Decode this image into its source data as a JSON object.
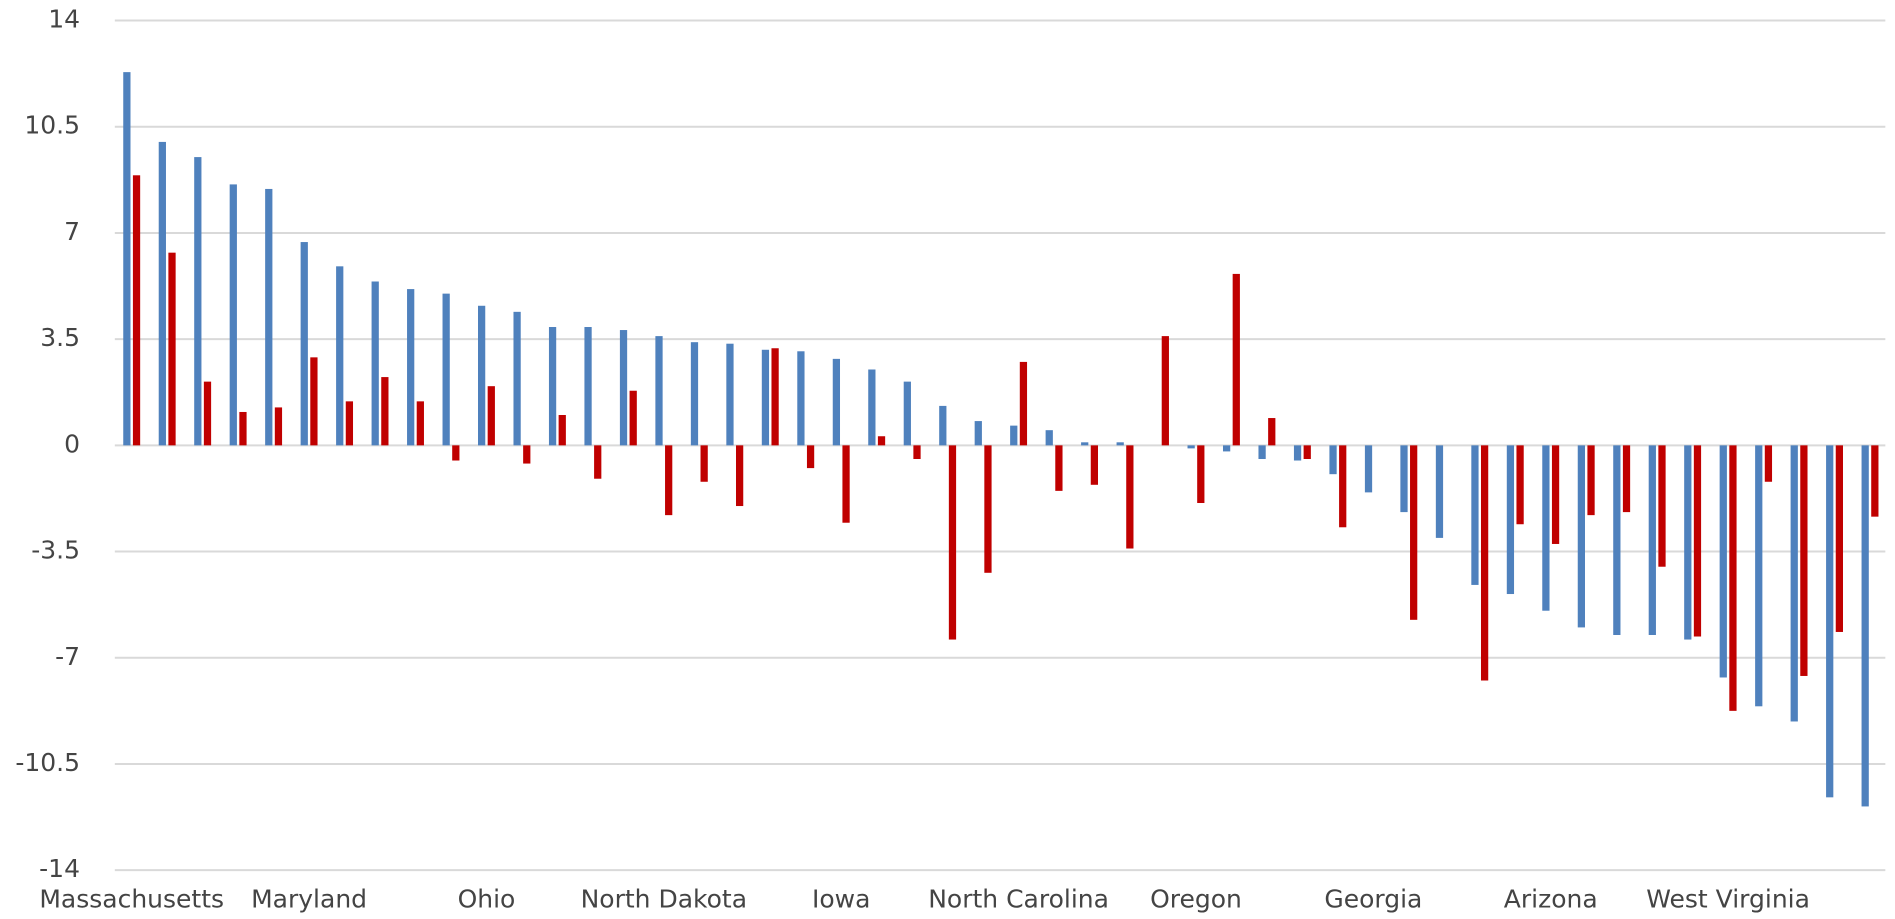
{
  "chart_data": {
    "type": "bar",
    "categories": [
      "Massachusetts",
      null,
      null,
      null,
      null,
      "Maryland",
      null,
      null,
      null,
      null,
      "Ohio",
      null,
      null,
      null,
      null,
      "North Dakota",
      null,
      null,
      null,
      null,
      "Iowa",
      null,
      null,
      null,
      null,
      "North Carolina",
      null,
      null,
      null,
      null,
      "Oregon",
      null,
      null,
      null,
      null,
      "Georgia",
      null,
      null,
      null,
      null,
      "Arizona",
      null,
      null,
      null,
      null,
      "West Virginia",
      null,
      null,
      null,
      null
    ],
    "series": [
      {
        "color": "#4f81bd",
        "values": [
          12.3,
          10.0,
          9.5,
          8.6,
          8.45,
          6.7,
          5.9,
          5.4,
          5.15,
          5.0,
          4.6,
          4.4,
          3.9,
          3.9,
          3.8,
          3.6,
          3.4,
          3.35,
          3.15,
          3.1,
          2.85,
          2.5,
          2.1,
          1.3,
          0.8,
          0.65,
          0.5,
          0.1,
          0.1,
          0,
          -0.1,
          -0.2,
          -0.45,
          -0.5,
          -0.95,
          -1.55,
          -2.2,
          -3.05,
          -4.6,
          -4.9,
          -5.45,
          -6.0,
          -6.25,
          -6.25,
          -6.4,
          -7.65,
          -8.6,
          -9.1,
          -11.6,
          -11.9
        ]
      },
      {
        "color": "#c00000",
        "values": [
          8.9,
          6.35,
          2.1,
          1.1,
          1.25,
          2.9,
          1.45,
          2.25,
          1.45,
          -0.5,
          1.95,
          -0.6,
          1.0,
          -1.1,
          1.8,
          -2.3,
          -1.2,
          -2.0,
          3.2,
          -0.75,
          -2.55,
          0.3,
          -0.45,
          -6.4,
          -4.2,
          2.75,
          -1.5,
          -1.3,
          -3.4,
          3.6,
          -1.9,
          5.65,
          0.9,
          -0.45,
          -2.7,
          0,
          -5.75,
          0,
          -7.75,
          -2.6,
          -3.25,
          -2.3,
          -2.2,
          -4.0,
          -6.3,
          -8.75,
          -1.2,
          -7.6,
          -6.15,
          -2.35
        ]
      }
    ],
    "ylim": [
      -14,
      14
    ],
    "yticks": [
      -14,
      -10.5,
      -7,
      -3.5,
      0,
      3.5,
      7,
      10.5,
      14
    ],
    "grid": true
  }
}
